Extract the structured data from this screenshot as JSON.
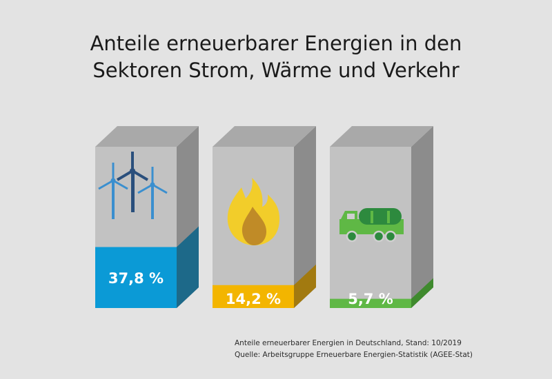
{
  "title_line1": "Anteile erneuerbarer Energien in den",
  "title_line2": "Sektoren Strom, Wärme und Verkehr",
  "chart_data": {
    "type": "bar",
    "title": "Anteile erneuerbarer Energien in den Sektoren Strom, Wärme und Verkehr",
    "categories": [
      "",
      "",
      ""
    ],
    "values": [
      37.8,
      14.2,
      5.7
    ],
    "value_labels": [
      "37,8 %",
      "14,2 %",
      "5,7 %"
    ],
    "unit": "%",
    "ylim": [
      0,
      100
    ],
    "icons": [
      "wind-turbines-icon",
      "flame-icon",
      "tanker-truck-icon"
    ],
    "colors": {
      "front": [
        "#0b9ad6",
        "#f3b500",
        "#5fb845"
      ],
      "side": [
        "#1d6989",
        "#a27a10",
        "#3f8a2e"
      ]
    }
  },
  "source": {
    "line1": "Anteile erneuerbarer Energien in Deutschland, Stand: 10/2019",
    "line2": "Quelle: Arbeitsgruppe Erneuerbare Energien-Statistik (AGEE-Stat)"
  }
}
